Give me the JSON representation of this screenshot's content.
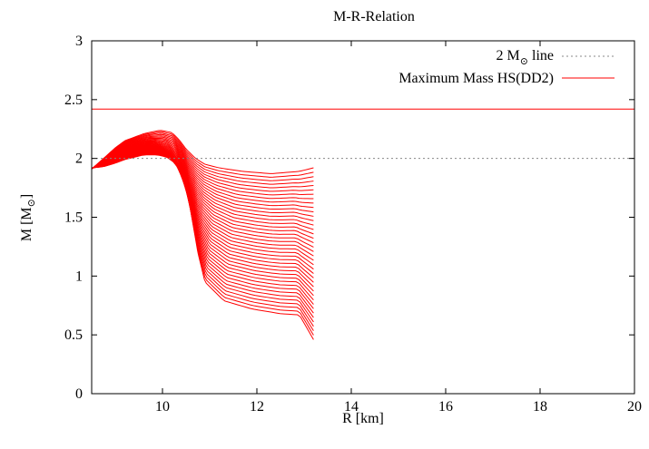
{
  "chart_data": {
    "type": "line",
    "title": "M-R-Relation",
    "xlabel": "R [km]",
    "ylabel_main": "M [M",
    "ylabel_sub": "⊙",
    "ylabel_end": "]",
    "xlim": [
      8.5,
      20
    ],
    "ylim": [
      0,
      3
    ],
    "x_ticks": [
      "10",
      "12",
      "14",
      "16",
      "18",
      "20"
    ],
    "y_ticks": [
      "0",
      "0.5",
      "1",
      "1.5",
      "2",
      "2.5",
      "3"
    ],
    "grid": false,
    "legend_position": "top-right",
    "colors": {
      "curves": "#ff0000",
      "two_msun_line": "#888888",
      "max_mass_line": "#ff0000"
    },
    "reference_lines": [
      {
        "name_main": "2 M",
        "name_sub": "⊙",
        "name_end": " line",
        "y": 2.0,
        "style": "dotted"
      },
      {
        "name_main": "Maximum Mass HS(DD2)",
        "name_sub": "",
        "name_end": "",
        "y": 2.42,
        "style": "solid"
      }
    ],
    "curve_family": {
      "count": 40,
      "first_curve": {
        "R": [
          8.5,
          8.75,
          9.0,
          9.2,
          9.6,
          9.9,
          10.1,
          10.3,
          10.45,
          10.6,
          10.75,
          10.9,
          11.3,
          11.9,
          12.5,
          12.9,
          13.2
        ],
        "M": [
          1.92,
          1.93,
          1.96,
          1.99,
          2.03,
          2.03,
          2.01,
          1.95,
          1.85,
          1.55,
          1.2,
          0.95,
          0.79,
          0.72,
          0.68,
          0.67,
          0.46
        ]
      },
      "last_curve": {
        "R": [
          8.5,
          8.75,
          9.0,
          9.2,
          9.6,
          9.95,
          10.2,
          10.35,
          10.5,
          10.7,
          10.9,
          11.2,
          11.7,
          12.3,
          12.9,
          13.2
        ],
        "M": [
          1.91,
          2.0,
          2.09,
          2.15,
          2.21,
          2.24,
          2.22,
          2.16,
          2.08,
          2.0,
          1.95,
          1.92,
          1.89,
          1.87,
          1.89,
          1.92
        ]
      }
    }
  }
}
